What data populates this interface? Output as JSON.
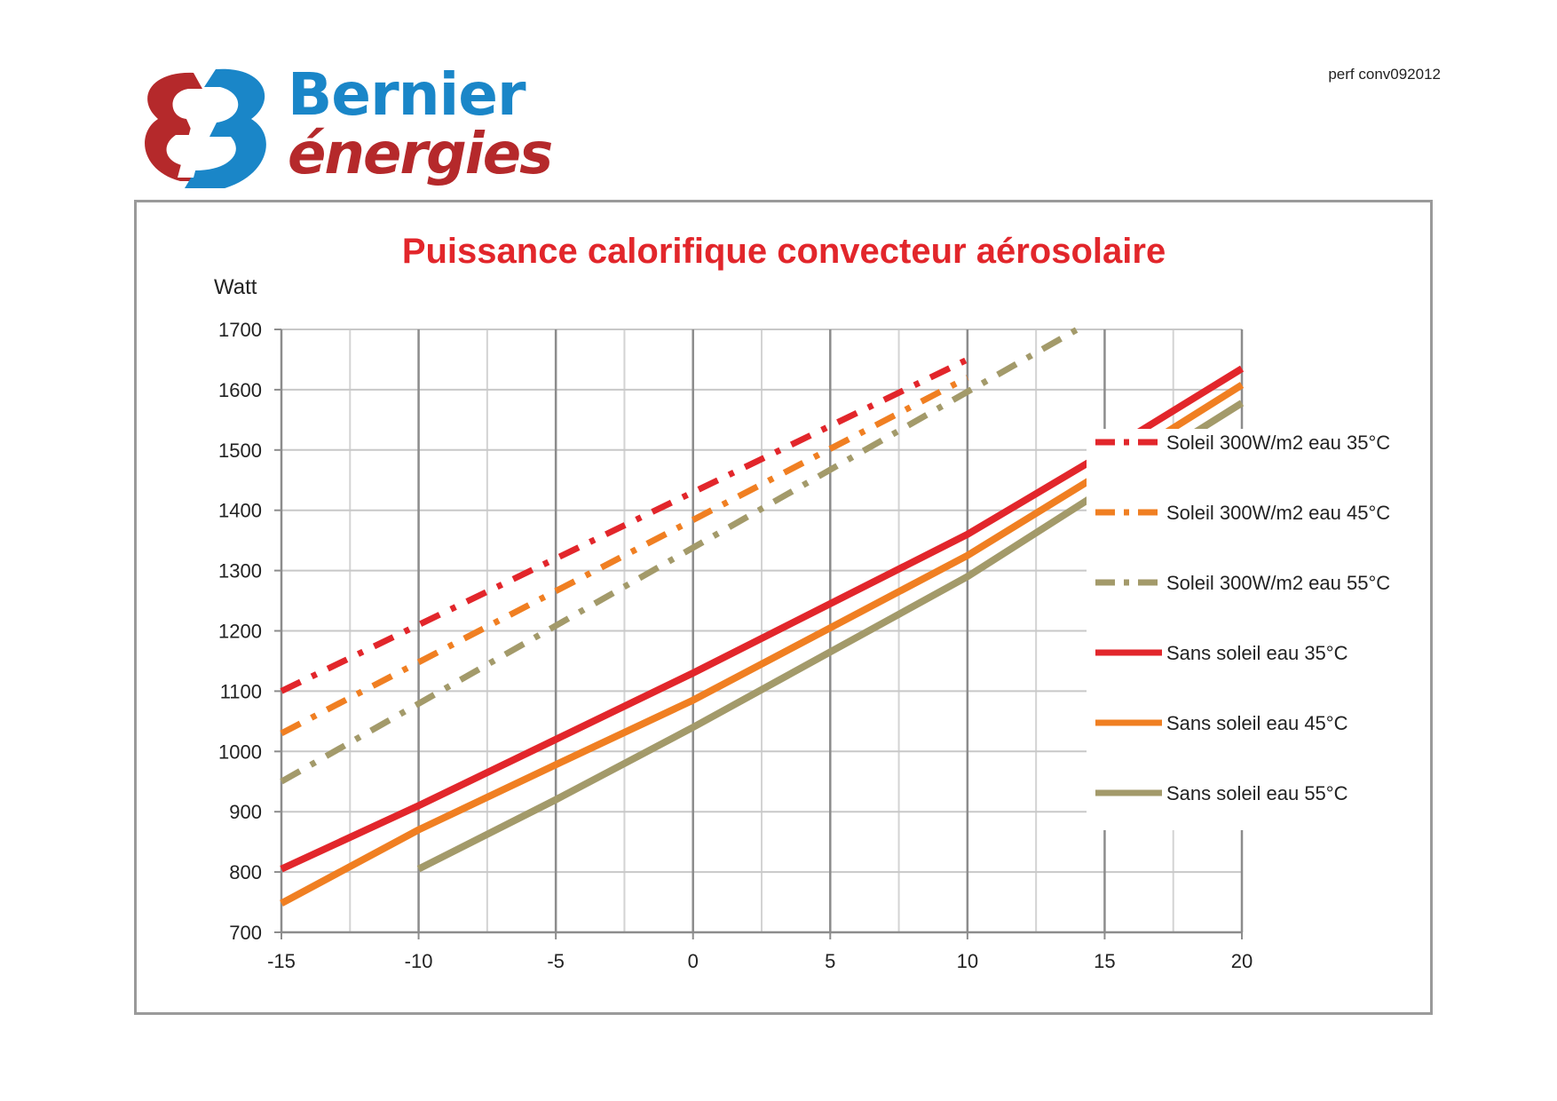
{
  "header": {
    "reference": "perf conv092012",
    "logo": {
      "line1": "Bernier",
      "line2": "énergies",
      "colors": {
        "blue": "#1a86c8",
        "red": "#b5292b"
      }
    }
  },
  "chart_data": {
    "type": "line",
    "title": "Puissance calorifique convecteur aérosolaire",
    "ylabel": "Watt",
    "xlabel": "",
    "xlim": [
      -15,
      20
    ],
    "ylim": [
      700,
      1700
    ],
    "xticks": [
      -15,
      -10,
      -5,
      0,
      5,
      10,
      15,
      20
    ],
    "yticks": [
      700,
      800,
      900,
      1000,
      1100,
      1200,
      1300,
      1400,
      1500,
      1600,
      1700
    ],
    "grid": true,
    "legend_position": "right",
    "series": [
      {
        "name": "Soleil 300W/m2 eau 35°C",
        "color": "#e2262b",
        "style": "dashdot",
        "x": [
          -15,
          10
        ],
        "y": [
          1100,
          1650
        ]
      },
      {
        "name": "Soleil 300W/m2 eau  45°C",
        "color": "#f07f22",
        "style": "dashdot",
        "x": [
          -15,
          10
        ],
        "y": [
          1030,
          1620
        ]
      },
      {
        "name": "Soleil 300W/m2 eau  55°C",
        "color": "#a39a6a",
        "style": "dashdot",
        "x": [
          -15,
          14
        ],
        "y": [
          950,
          1700
        ]
      },
      {
        "name": "Sans soleil eau 35°C",
        "color": "#e2262b",
        "style": "solid",
        "x": [
          -15,
          -10,
          -5,
          0,
          5,
          10,
          15,
          20
        ],
        "y": [
          805,
          910,
          1020,
          1130,
          1245,
          1360,
          1495,
          1635
        ]
      },
      {
        "name": "Sans soleil eau 45°C",
        "color": "#f07f22",
        "style": "solid",
        "x": [
          -15,
          -10,
          -5,
          0,
          5,
          10,
          15,
          20
        ],
        "y": [
          748,
          870,
          978,
          1085,
          1205,
          1325,
          1465,
          1608
        ]
      },
      {
        "name": "Sans soleil eau 55°C",
        "color": "#a39a6a",
        "style": "solid",
        "x": [
          -10,
          -5,
          0,
          5,
          10,
          15,
          20
        ],
        "y": [
          805,
          920,
          1040,
          1165,
          1290,
          1435,
          1578
        ]
      }
    ]
  }
}
